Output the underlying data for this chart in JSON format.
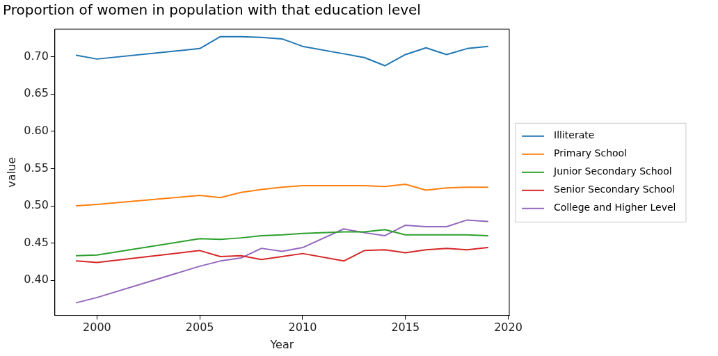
{
  "chart_data": {
    "type": "line",
    "title": "Proportion of women in population with that education level",
    "xlabel": "Year",
    "ylabel": "value",
    "x": [
      1999,
      2000,
      2005,
      2006,
      2007,
      2008,
      2009,
      2010,
      2012,
      2013,
      2014,
      2015,
      2016,
      2017,
      2018,
      2019
    ],
    "series": [
      {
        "name": "Illiterate",
        "color": "#1f77b4",
        "values": [
          0.702,
          0.697,
          0.711,
          0.727,
          0.727,
          0.726,
          0.724,
          0.714,
          0.704,
          0.699,
          0.688,
          0.703,
          0.712,
          0.703,
          0.711,
          0.714
        ]
      },
      {
        "name": "Primary School",
        "color": "#ff7f0e",
        "values": [
          0.5,
          0.502,
          0.514,
          0.511,
          0.518,
          0.522,
          0.525,
          0.527,
          0.527,
          0.527,
          0.526,
          0.529,
          0.521,
          0.524,
          0.525,
          0.525
        ]
      },
      {
        "name": "Junior Secondary School",
        "color": "#2ca02c",
        "values": [
          0.433,
          0.434,
          0.456,
          0.455,
          0.457,
          0.46,
          0.461,
          0.463,
          0.465,
          0.465,
          0.468,
          0.461,
          0.461,
          0.461,
          0.461,
          0.46
        ]
      },
      {
        "name": "Senior Secondary School",
        "color": "#d62728",
        "values": [
          0.426,
          0.424,
          0.44,
          0.432,
          0.433,
          0.428,
          0.432,
          0.436,
          0.426,
          0.44,
          0.441,
          0.437,
          0.441,
          0.443,
          0.441,
          0.444
        ]
      },
      {
        "name": "College and Higher Level",
        "color": "#9467bd",
        "values": [
          0.37,
          0.377,
          0.419,
          0.426,
          0.43,
          0.443,
          0.439,
          0.444,
          0.469,
          0.464,
          0.46,
          0.474,
          0.472,
          0.472,
          0.481,
          0.479
        ]
      }
    ],
    "xlim": [
      1997.95,
      2020.05
    ],
    "xticks": [
      2000,
      2005,
      2010,
      2015,
      2020
    ],
    "ylim": [
      0.353,
      0.737
    ],
    "yticks": [
      {
        "value": 0.4,
        "label": "0.40"
      },
      {
        "value": 0.45,
        "label": "0.45"
      },
      {
        "value": 0.5,
        "label": "0.50"
      },
      {
        "value": 0.55,
        "label": "0.55"
      },
      {
        "value": 0.6,
        "label": "0.60"
      },
      {
        "value": 0.65,
        "label": "0.65"
      },
      {
        "value": 0.7,
        "label": "0.70"
      }
    ],
    "grid": false,
    "legend": "right",
    "marker": "none",
    "line_style": "solid"
  }
}
